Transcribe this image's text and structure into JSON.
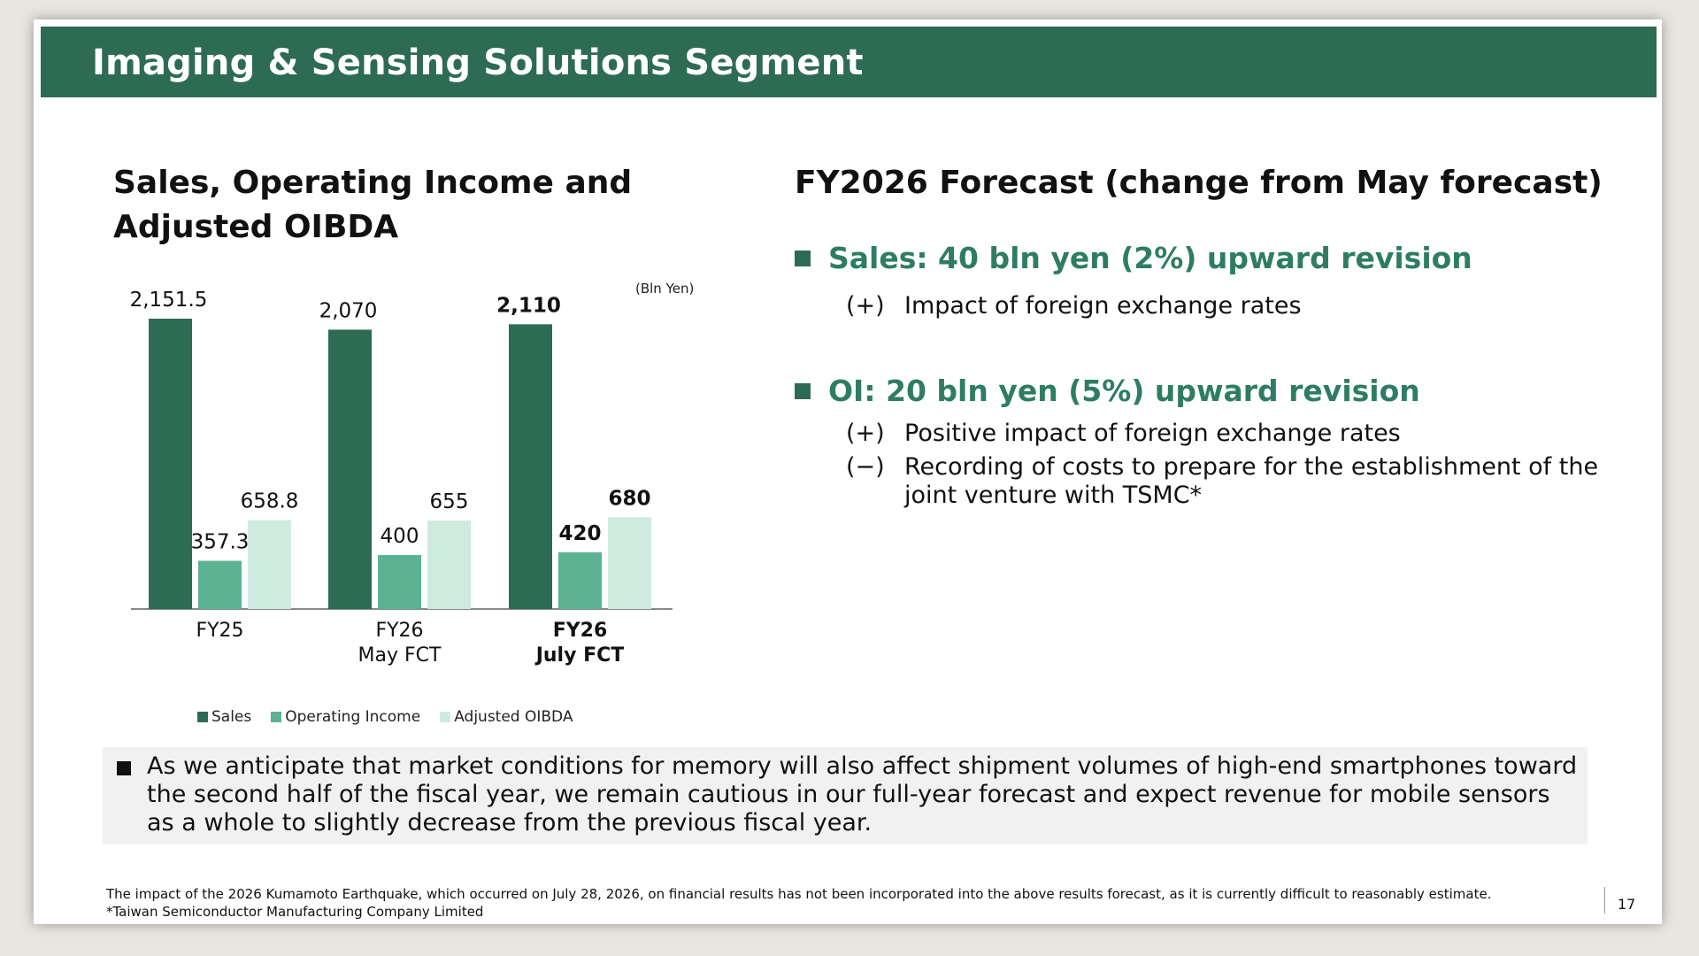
{
  "slide": {
    "title": "Imaging & Sensing Solutions Segment",
    "page_number": "17"
  },
  "chart_section": {
    "title": "Sales, Operating Income and Adjusted OIBDA",
    "unit": "(Bln Yen)"
  },
  "chart_data": {
    "type": "bar",
    "categories": [
      {
        "lines": [
          "FY25"
        ],
        "bold": false
      },
      {
        "lines": [
          "FY26",
          "May FCT"
        ],
        "bold": false
      },
      {
        "lines": [
          "FY26",
          "July FCT"
        ],
        "bold": true
      }
    ],
    "series": [
      {
        "name": "Sales",
        "color": "#2e6b54",
        "values": [
          2151.5,
          2070,
          2110
        ],
        "labels": [
          "2,151.5",
          "2,070",
          "2,110"
        ]
      },
      {
        "name": "Operating Income",
        "color": "#5bb394",
        "values": [
          357.3,
          400,
          420
        ],
        "labels": [
          "357.3",
          "400",
          "420"
        ]
      },
      {
        "name": "Adjusted OIBDA",
        "color": "#cdebdf",
        "values": [
          658.8,
          655,
          680
        ],
        "labels": [
          "658.8",
          "655",
          "680"
        ]
      }
    ],
    "legend_placement": "bottom",
    "grid": false
  },
  "forecast": {
    "title": "FY2026 Forecast (change from May forecast)",
    "items": [
      {
        "heading": "Sales: 40 bln yen (2%) upward revision",
        "points": [
          {
            "mark": "(+)",
            "text": "Impact of foreign exchange rates"
          }
        ]
      },
      {
        "heading": "OI: 20 bln yen (5%) upward revision",
        "points": [
          {
            "mark": "(+)",
            "text": "Positive impact of foreign exchange rates"
          },
          {
            "mark": "(−)",
            "text": "Recording of costs to prepare for the establishment of the joint venture with TSMC*"
          }
        ]
      }
    ]
  },
  "note": "As we anticipate that market conditions for memory will also affect shipment volumes of high-end smartphones toward the second half of the fiscal year, we remain cautious in our full-year forecast and expect revenue for mobile sensors as a whole to slightly decrease from the previous fiscal year.",
  "footnotes": [
    "The impact of the 2026 Kumamoto Earthquake, which occurred on July 28, 2026, on financial results has not been incorporated into the above results forecast, as it is currently difficult to reasonably estimate.",
    "*Taiwan Semiconductor Manufacturing Company Limited"
  ]
}
